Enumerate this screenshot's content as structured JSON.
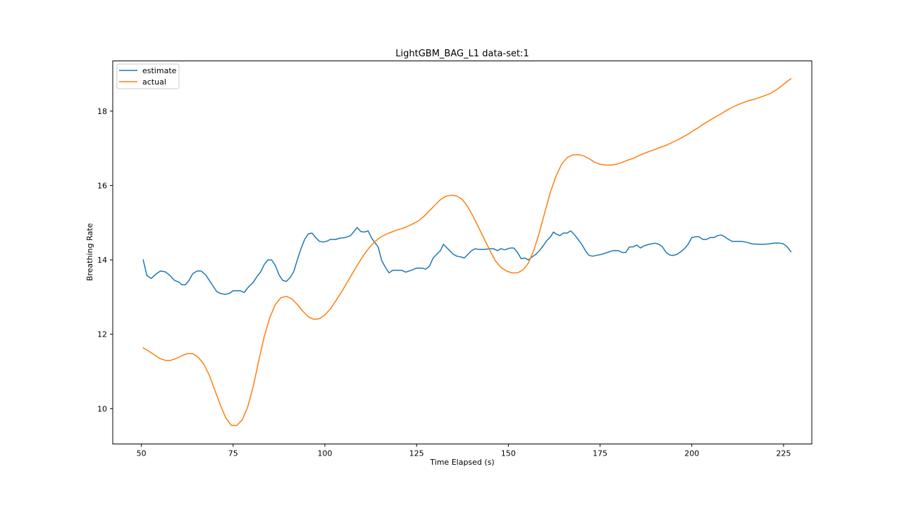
{
  "chart_data": {
    "type": "line",
    "title": "LightGBM_BAG_L1 data-set:1",
    "xlabel": "Time Elapsed (s)",
    "ylabel": "Breathing Rate",
    "xlim": [
      42.2,
      232.7
    ],
    "ylim": [
      9.05,
      19.35
    ],
    "xticks": [
      50,
      75,
      100,
      125,
      150,
      175,
      200,
      225
    ],
    "yticks": [
      10,
      12,
      14,
      16,
      18
    ],
    "grid": false,
    "legend_position": "top-left",
    "series": [
      {
        "name": "estimate",
        "color": "#1f77b4",
        "points": [
          [
            50.5,
            14.0
          ],
          [
            51.5,
            13.58
          ],
          [
            52.7,
            13.5
          ],
          [
            54,
            13.62
          ],
          [
            55.2,
            13.7
          ],
          [
            56.5,
            13.68
          ],
          [
            57.8,
            13.58
          ],
          [
            59,
            13.45
          ],
          [
            60.3,
            13.4
          ],
          [
            61,
            13.33
          ],
          [
            62,
            13.33
          ],
          [
            63,
            13.45
          ],
          [
            64,
            13.63
          ],
          [
            65.2,
            13.7
          ],
          [
            66.3,
            13.7
          ],
          [
            67.5,
            13.6
          ],
          [
            68.5,
            13.45
          ],
          [
            69.5,
            13.3
          ],
          [
            70.5,
            13.15
          ],
          [
            71.5,
            13.1
          ],
          [
            72.8,
            13.07
          ],
          [
            74,
            13.1
          ],
          [
            75,
            13.17
          ],
          [
            76,
            13.17
          ],
          [
            77,
            13.17
          ],
          [
            78,
            13.12
          ],
          [
            79,
            13.25
          ],
          [
            80.5,
            13.4
          ],
          [
            81.5,
            13.55
          ],
          [
            82.5,
            13.68
          ],
          [
            83.5,
            13.88
          ],
          [
            84.5,
            14.0
          ],
          [
            85.5,
            14.0
          ],
          [
            86.5,
            13.85
          ],
          [
            87.5,
            13.6
          ],
          [
            88.5,
            13.45
          ],
          [
            89.5,
            13.42
          ],
          [
            90.5,
            13.52
          ],
          [
            91.5,
            13.68
          ],
          [
            92.5,
            14.0
          ],
          [
            93.5,
            14.3
          ],
          [
            94.5,
            14.55
          ],
          [
            95.5,
            14.7
          ],
          [
            96.5,
            14.72
          ],
          [
            97.5,
            14.6
          ],
          [
            98.5,
            14.5
          ],
          [
            99.5,
            14.48
          ],
          [
            100.5,
            14.5
          ],
          [
            101.5,
            14.55
          ],
          [
            103,
            14.55
          ],
          [
            104,
            14.58
          ],
          [
            105.5,
            14.6
          ],
          [
            107,
            14.65
          ],
          [
            108,
            14.77
          ],
          [
            108.8,
            14.87
          ],
          [
            109.8,
            14.76
          ],
          [
            110.8,
            14.75
          ],
          [
            111.8,
            14.78
          ],
          [
            112.8,
            14.58
          ],
          [
            113.5,
            14.48
          ],
          [
            114.5,
            14.35
          ],
          [
            115.5,
            13.98
          ],
          [
            116.5,
            13.8
          ],
          [
            117.5,
            13.65
          ],
          [
            118.5,
            13.72
          ],
          [
            119.5,
            13.72
          ],
          [
            121,
            13.72
          ],
          [
            122,
            13.67
          ],
          [
            123.5,
            13.72
          ],
          [
            125,
            13.78
          ],
          [
            126.5,
            13.78
          ],
          [
            127.5,
            13.75
          ],
          [
            128.5,
            13.83
          ],
          [
            129.5,
            14.05
          ],
          [
            130.5,
            14.15
          ],
          [
            131.5,
            14.25
          ],
          [
            132.3,
            14.42
          ],
          [
            133,
            14.35
          ],
          [
            134,
            14.25
          ],
          [
            135,
            14.15
          ],
          [
            136,
            14.1
          ],
          [
            137,
            14.08
          ],
          [
            138,
            14.05
          ],
          [
            139,
            14.15
          ],
          [
            140,
            14.25
          ],
          [
            141,
            14.3
          ],
          [
            142,
            14.28
          ],
          [
            143.5,
            14.28
          ],
          [
            145,
            14.3
          ],
          [
            146,
            14.3
          ],
          [
            147,
            14.25
          ],
          [
            148,
            14.3
          ],
          [
            149,
            14.27
          ],
          [
            150.5,
            14.32
          ],
          [
            151.5,
            14.32
          ],
          [
            152.5,
            14.2
          ],
          [
            153.5,
            14.03
          ],
          [
            154.5,
            14.05
          ],
          [
            155.5,
            14.0
          ],
          [
            156.5,
            14.08
          ],
          [
            157.5,
            14.15
          ],
          [
            158.5,
            14.25
          ],
          [
            159.5,
            14.38
          ],
          [
            160.5,
            14.52
          ],
          [
            161.5,
            14.62
          ],
          [
            162.3,
            14.75
          ],
          [
            163,
            14.7
          ],
          [
            164,
            14.65
          ],
          [
            165,
            14.72
          ],
          [
            166,
            14.72
          ],
          [
            167,
            14.78
          ],
          [
            168,
            14.68
          ],
          [
            169,
            14.55
          ],
          [
            170,
            14.42
          ],
          [
            171,
            14.25
          ],
          [
            172,
            14.12
          ],
          [
            173,
            14.1
          ],
          [
            174,
            14.12
          ],
          [
            175.5,
            14.15
          ],
          [
            177,
            14.2
          ],
          [
            178.5,
            14.25
          ],
          [
            180,
            14.25
          ],
          [
            181,
            14.2
          ],
          [
            182,
            14.2
          ],
          [
            183,
            14.35
          ],
          [
            184,
            14.35
          ],
          [
            185,
            14.4
          ],
          [
            186,
            14.32
          ],
          [
            187,
            14.38
          ],
          [
            188.5,
            14.42
          ],
          [
            190,
            14.45
          ],
          [
            191,
            14.42
          ],
          [
            192,
            14.35
          ],
          [
            193,
            14.2
          ],
          [
            194,
            14.13
          ],
          [
            195,
            14.12
          ],
          [
            196,
            14.15
          ],
          [
            197,
            14.22
          ],
          [
            198,
            14.3
          ],
          [
            199,
            14.42
          ],
          [
            200,
            14.6
          ],
          [
            201,
            14.62
          ],
          [
            202,
            14.62
          ],
          [
            203,
            14.55
          ],
          [
            204,
            14.55
          ],
          [
            205,
            14.6
          ],
          [
            206,
            14.6
          ],
          [
            207,
            14.65
          ],
          [
            208,
            14.67
          ],
          [
            209,
            14.62
          ],
          [
            210,
            14.55
          ],
          [
            211,
            14.5
          ],
          [
            212,
            14.5
          ],
          [
            213.5,
            14.5
          ],
          [
            215,
            14.47
          ],
          [
            216.5,
            14.43
          ],
          [
            218,
            14.42
          ],
          [
            219.5,
            14.42
          ],
          [
            221,
            14.43
          ],
          [
            222.5,
            14.45
          ],
          [
            224,
            14.45
          ],
          [
            225,
            14.43
          ],
          [
            226,
            14.35
          ],
          [
            227,
            14.22
          ]
        ]
      },
      {
        "name": "actual",
        "color": "#ff7f0e",
        "points": [
          [
            50.5,
            11.63
          ],
          [
            52,
            11.55
          ],
          [
            53.5,
            11.45
          ],
          [
            55,
            11.35
          ],
          [
            56.5,
            11.3
          ],
          [
            58,
            11.3
          ],
          [
            59.5,
            11.35
          ],
          [
            61,
            11.42
          ],
          [
            62.5,
            11.48
          ],
          [
            64,
            11.48
          ],
          [
            65.5,
            11.38
          ],
          [
            67,
            11.2
          ],
          [
            68.5,
            10.9
          ],
          [
            70,
            10.5
          ],
          [
            71.5,
            10.1
          ],
          [
            73,
            9.75
          ],
          [
            74.5,
            9.55
          ],
          [
            76,
            9.55
          ],
          [
            77.5,
            9.7
          ],
          [
            79,
            10.05
          ],
          [
            80.5,
            10.6
          ],
          [
            82,
            11.3
          ],
          [
            83.5,
            11.95
          ],
          [
            85,
            12.45
          ],
          [
            86.5,
            12.8
          ],
          [
            88,
            12.98
          ],
          [
            89.5,
            13.02
          ],
          [
            91,
            12.95
          ],
          [
            92.5,
            12.8
          ],
          [
            94,
            12.62
          ],
          [
            95.5,
            12.47
          ],
          [
            97,
            12.4
          ],
          [
            98.5,
            12.42
          ],
          [
            100,
            12.52
          ],
          [
            101.5,
            12.68
          ],
          [
            103,
            12.9
          ],
          [
            104.5,
            13.13
          ],
          [
            106,
            13.38
          ],
          [
            107.5,
            13.63
          ],
          [
            109,
            13.88
          ],
          [
            110.5,
            14.12
          ],
          [
            112,
            14.32
          ],
          [
            113.5,
            14.48
          ],
          [
            115,
            14.6
          ],
          [
            116.5,
            14.68
          ],
          [
            118,
            14.74
          ],
          [
            119.5,
            14.8
          ],
          [
            121,
            14.84
          ],
          [
            122.5,
            14.9
          ],
          [
            124,
            14.97
          ],
          [
            125.5,
            15.05
          ],
          [
            127,
            15.17
          ],
          [
            128.5,
            15.32
          ],
          [
            130,
            15.47
          ],
          [
            131.5,
            15.62
          ],
          [
            133,
            15.71
          ],
          [
            134.5,
            15.74
          ],
          [
            136,
            15.72
          ],
          [
            137.5,
            15.62
          ],
          [
            139,
            15.42
          ],
          [
            140.5,
            15.15
          ],
          [
            142,
            14.85
          ],
          [
            143.5,
            14.55
          ],
          [
            145,
            14.25
          ],
          [
            146.5,
            13.97
          ],
          [
            148,
            13.8
          ],
          [
            149.5,
            13.7
          ],
          [
            151,
            13.65
          ],
          [
            152.5,
            13.65
          ],
          [
            154,
            13.73
          ],
          [
            155.5,
            13.92
          ],
          [
            157,
            14.27
          ],
          [
            158.5,
            14.75
          ],
          [
            160,
            15.3
          ],
          [
            161.5,
            15.83
          ],
          [
            163,
            16.25
          ],
          [
            164.5,
            16.57
          ],
          [
            166,
            16.75
          ],
          [
            167.5,
            16.82
          ],
          [
            169,
            16.83
          ],
          [
            170.5,
            16.8
          ],
          [
            172,
            16.72
          ],
          [
            173.5,
            16.63
          ],
          [
            175,
            16.57
          ],
          [
            176.5,
            16.55
          ],
          [
            178,
            16.55
          ],
          [
            179.5,
            16.57
          ],
          [
            181,
            16.62
          ],
          [
            182.5,
            16.68
          ],
          [
            184,
            16.73
          ],
          [
            185.5,
            16.8
          ],
          [
            187,
            16.86
          ],
          [
            188.5,
            16.92
          ],
          [
            190,
            16.97
          ],
          [
            191.5,
            17.03
          ],
          [
            193,
            17.08
          ],
          [
            194.5,
            17.15
          ],
          [
            196,
            17.22
          ],
          [
            197.5,
            17.3
          ],
          [
            199,
            17.38
          ],
          [
            200.5,
            17.48
          ],
          [
            202,
            17.57
          ],
          [
            203.5,
            17.67
          ],
          [
            205,
            17.76
          ],
          [
            206.5,
            17.85
          ],
          [
            208,
            17.93
          ],
          [
            209.5,
            18.02
          ],
          [
            211,
            18.1
          ],
          [
            212.5,
            18.17
          ],
          [
            214,
            18.23
          ],
          [
            215.5,
            18.28
          ],
          [
            217,
            18.32
          ],
          [
            218.5,
            18.37
          ],
          [
            220,
            18.42
          ],
          [
            221.5,
            18.48
          ],
          [
            223,
            18.57
          ],
          [
            224.5,
            18.68
          ],
          [
            226,
            18.8
          ],
          [
            227,
            18.87
          ]
        ]
      }
    ]
  }
}
